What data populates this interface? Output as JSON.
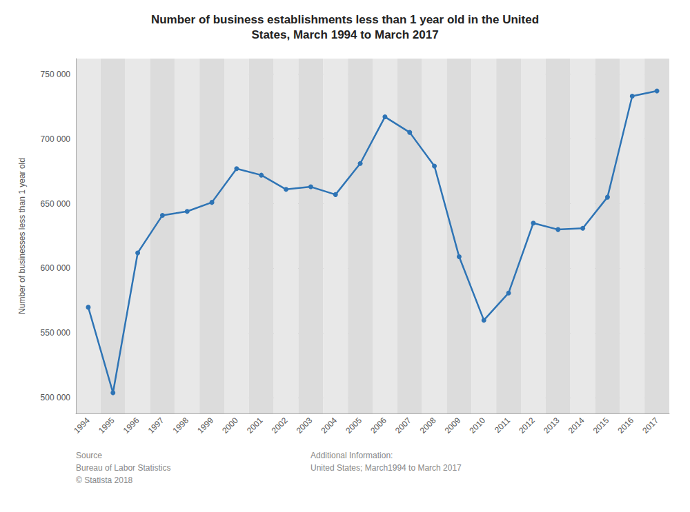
{
  "chart_data": {
    "type": "line",
    "title": "Number of business establishments less than 1 year old in the United\nStates, March 1994 to March 2017",
    "y_label": "Number of businesses less than 1 year old",
    "categories": [
      "1994",
      "1995",
      "1996",
      "1997",
      "1998",
      "1999",
      "2000",
      "2001",
      "2002",
      "2003",
      "2004",
      "2005",
      "2006",
      "2007",
      "2008",
      "2009",
      "2010",
      "2011",
      "2012",
      "2013",
      "2014",
      "2015",
      "2016",
      "2017"
    ],
    "values": [
      570000,
      504000,
      612000,
      641000,
      644000,
      651000,
      677000,
      672000,
      661000,
      663000,
      657000,
      681000,
      717000,
      705000,
      679000,
      609000,
      560000,
      581000,
      635000,
      630000,
      631000,
      655000,
      733000,
      737000
    ],
    "color": "#2e74b5",
    "marker": "circle",
    "ylim": [
      488000,
      762000
    ],
    "yticks": [
      {
        "value": 500000,
        "label": "500 000"
      },
      {
        "value": 550000,
        "label": "550 000"
      },
      {
        "value": 600000,
        "label": "600 000"
      },
      {
        "value": 650000,
        "label": "650 000"
      },
      {
        "value": 700000,
        "label": "700 000"
      },
      {
        "value": 750000,
        "label": "750 000"
      }
    ],
    "grid": true,
    "annotations": [
      "Source\nBureau of Labor Statistics\n© Statista 2018",
      "Additional Information:\nUnited States; March1994 to March 2017"
    ]
  }
}
